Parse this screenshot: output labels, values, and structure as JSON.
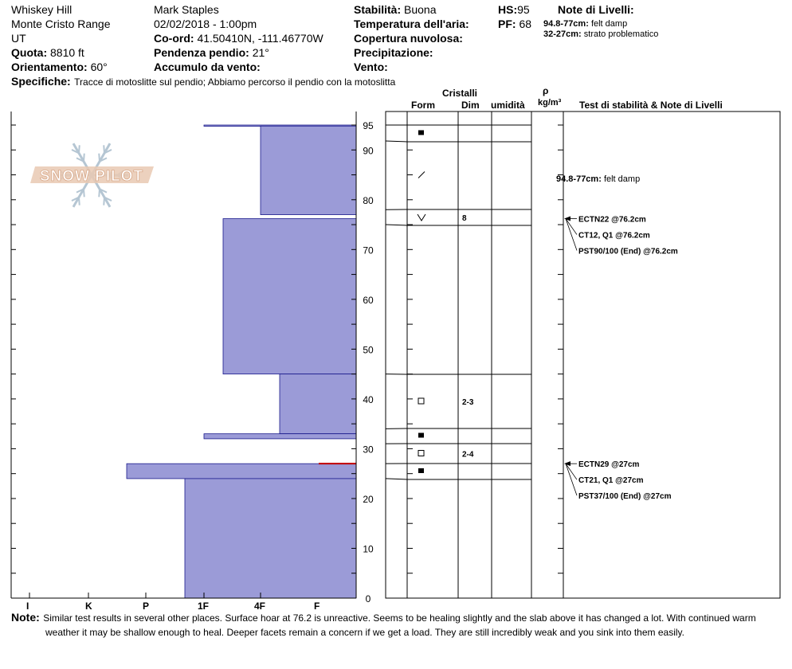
{
  "header": {
    "location": "Whiskey Hill",
    "range": "Monte Cristo Range",
    "state": "UT",
    "elevation_label": "Quota:",
    "elevation_value": "8810 ft",
    "aspect_label": "Orientamento:",
    "aspect_value": "60°",
    "observer": "Mark Staples",
    "datetime": "02/02/2018 - 1:00pm",
    "coord_label": "Co-ord:",
    "coord_value": "41.50410N, -111.46770W",
    "slope_label": "Pendenza pendio:",
    "slope_value": "21°",
    "wind_load_label": "Accumulo da vento:",
    "stability_label": "Stabilità:",
    "stability_value": "Buona",
    "air_temp_label": "Temperatura dell'aria:",
    "cloud_label": "Copertura nuvolosa:",
    "precip_label": "Precipitazione:",
    "wind_label": "Vento:",
    "hs_label": "HS:",
    "hs_value": "95",
    "pf_label": "PF:",
    "pf_value": "68",
    "layer_notes_title": "Note di Livelli:",
    "layer_notes": [
      {
        "range": "94.8-77cm:",
        "text": "felt damp"
      },
      {
        "range": "32-27cm:",
        "text": "strato problematico"
      }
    ],
    "specifics_label": "Specifiche:",
    "specifics_text": "Tracce di motoslitte sul pendio; Abbiamo percorso il pendio con la motoslitta"
  },
  "logo_text": "SNOW PILOT",
  "columns": {
    "crystals": "Cristalli",
    "form": "Form",
    "size": "Dim",
    "moisture": "umidità",
    "rho": "ρ",
    "density_unit": "kg/m³",
    "tests_notes": "Test di stabilità & Note di Livelli"
  },
  "hardness_labels": [
    "I",
    "K",
    "P",
    "1F",
    "4F",
    "F"
  ],
  "depth_ticks": [
    0,
    10,
    20,
    30,
    40,
    50,
    60,
    70,
    80,
    90,
    95
  ],
  "colors": {
    "layer_fill": "#9b9bd7",
    "layer_edge": "#1a1a8c",
    "red_line": "#c00000",
    "logo": "#e9c9b3",
    "logo_dark": "#d9a98a",
    "flake": "#b5c6d3"
  },
  "chart_data": {
    "type": "snow_profile",
    "ylim": [
      0,
      95
    ],
    "hardness_scale": [
      "F",
      "4F",
      "1F",
      "P",
      "K",
      "I"
    ],
    "layers": [
      {
        "top": 95,
        "bottom": 94.8,
        "hardness": "1F"
      },
      {
        "top": 94.8,
        "bottom": 77,
        "hardness": "4F"
      },
      {
        "top": 77,
        "bottom": 76.2,
        "hardness": "F"
      },
      {
        "top": 76.2,
        "bottom": 45,
        "hardness": "1F-"
      },
      {
        "top": 45,
        "bottom": 33,
        "hardness": "4F-"
      },
      {
        "top": 33,
        "bottom": 32,
        "hardness": "1F"
      },
      {
        "top": 32,
        "bottom": 27,
        "hardness": "F"
      },
      {
        "top": 27,
        "bottom": 24,
        "hardness": "P+"
      },
      {
        "top": 24,
        "bottom": 0,
        "hardness": "1F+"
      }
    ],
    "red_line_depth": 27,
    "crystal_rows": [
      {
        "top": 95,
        "bottom": 91.8,
        "form": "filled-square",
        "size": ""
      },
      {
        "top": 91.8,
        "bottom": 78,
        "form": "slash",
        "size": ""
      },
      {
        "top": 78,
        "bottom": 75,
        "form": "V",
        "size": "8"
      },
      {
        "top": 75,
        "bottom": 45,
        "form": "",
        "size": ""
      },
      {
        "top": 45,
        "bottom": 34,
        "form": "open-square",
        "size": "2-3"
      },
      {
        "top": 34,
        "bottom": 31,
        "form": "filled-square",
        "size": ""
      },
      {
        "top": 31,
        "bottom": 27,
        "form": "open-square",
        "size": "2-4"
      },
      {
        "top": 27,
        "bottom": 24,
        "form": "filled-square",
        "size": ""
      },
      {
        "top": 24,
        "bottom": 0,
        "form": "",
        "size": ""
      }
    ],
    "tests": [
      {
        "depth": 76.2,
        "lines": [
          "ECTN22 @76.2cm",
          "CT12, Q1 @76.2cm",
          "PST90/100 (End) @76.2cm"
        ]
      },
      {
        "depth": 27,
        "lines": [
          "ECTN29 @27cm",
          "CT21, Q1 @27cm",
          "PST37/100 (End) @27cm"
        ]
      }
    ],
    "layer_note": {
      "depth_range": "94.8-77cm:",
      "text": "felt damp"
    }
  },
  "note": {
    "label": "Note:",
    "line1": "Similar test results in several other places. Surface hoar at 76.2 is unreactive. Seems to be healing slightly and the slab above it has changed a lot. With continued warm",
    "line2": "weather it may be shallow enough to heal. Deeper facets remain a concern if we get a load. They are still incredibly weak and you sink into them easily."
  }
}
